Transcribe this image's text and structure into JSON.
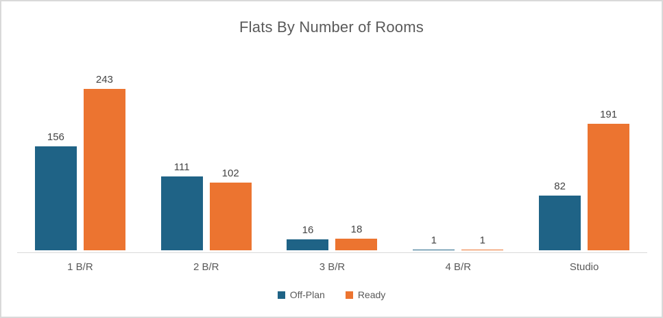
{
  "chart_data": {
    "type": "bar",
    "title": "Flats By Number of Rooms",
    "categories": [
      "1 B/R",
      "2 B/R",
      "3 B/R",
      "4 B/R",
      "Studio"
    ],
    "series": [
      {
        "name": "Off-Plan",
        "color": "#1f6386",
        "values": [
          156,
          111,
          16,
          1,
          82
        ]
      },
      {
        "name": "Ready",
        "color": "#ec7430",
        "values": [
          243,
          102,
          18,
          1,
          191
        ]
      }
    ],
    "ylim": [
      0,
      250
    ],
    "xlabel": "",
    "ylabel": "",
    "gridlines": false,
    "data_labels": true,
    "legend_position": "bottom",
    "colors": {
      "title_text": "#595959",
      "data_label_text": "#444444",
      "category_text": "#595959",
      "axis_line": "#d9d9d9",
      "border": "#d9d9d9",
      "background": "#ffffff"
    }
  }
}
